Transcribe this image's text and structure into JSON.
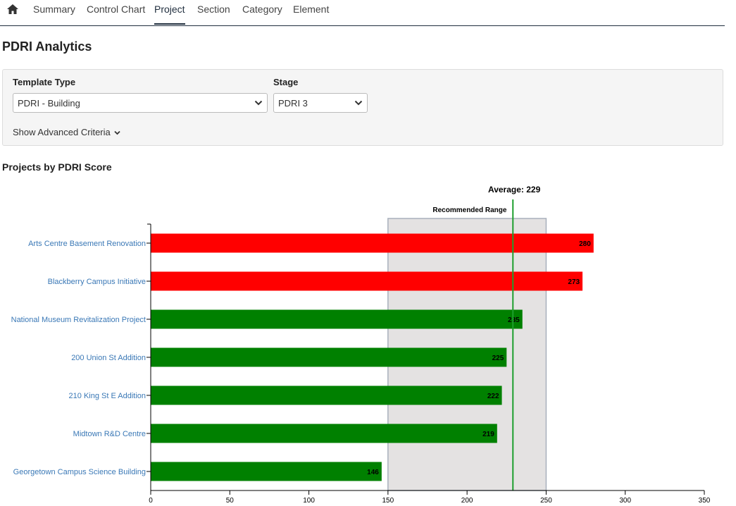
{
  "nav": {
    "home_icon": "home-icon",
    "tabs": [
      "Summary",
      "Control Chart",
      "Project",
      "Section",
      "Category",
      "Element"
    ],
    "active_tab": "Project"
  },
  "page_title": "PDRI Analytics",
  "filters": {
    "template_type": {
      "label": "Template Type",
      "value": "PDRI - Building"
    },
    "stage": {
      "label": "Stage",
      "value": "PDRI 3"
    },
    "advanced_link": "Show Advanced Criteria"
  },
  "chart_title": "Projects by PDRI Score",
  "chart_data": {
    "type": "bar",
    "orientation": "horizontal",
    "categories": [
      "Arts Centre Basement Renovation",
      "Blackberry Campus Initiative",
      "National Museum Revitalization Project",
      "200 Union St Addition",
      "210 King St E Addition",
      "Midtown R&D Centre",
      "Georgetown Campus Science Building"
    ],
    "values": [
      280,
      273,
      235,
      225,
      222,
      219,
      146
    ],
    "bar_colors": [
      "#ff0000",
      "#ff0000",
      "#008000",
      "#008000",
      "#008000",
      "#008000",
      "#008000"
    ],
    "xlim": [
      0,
      350
    ],
    "xticks": [
      0,
      50,
      100,
      150,
      200,
      250,
      300,
      350
    ],
    "recommended_range": {
      "label": "Recommended Range",
      "min": 150,
      "max": 250
    },
    "average": {
      "label": "Average: 229",
      "value": 229
    },
    "colors": {
      "range_fill": "#e4e2e2",
      "range_stroke": "#a8b0bc",
      "average_line": "#1e9e2e"
    }
  }
}
